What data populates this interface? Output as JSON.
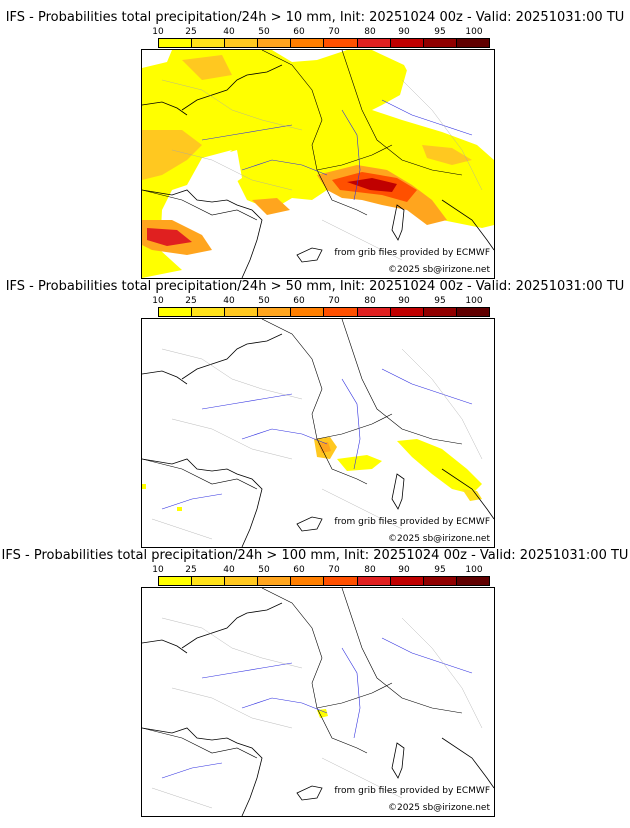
{
  "colors": {
    "scale": [
      "#ffff00",
      "#ffe21a",
      "#ffc820",
      "#ffa51e",
      "#ff7f00",
      "#ff5000",
      "#e02020",
      "#c00000",
      "#900000",
      "#600000"
    ],
    "border": "#000000",
    "river": "#3030e0",
    "admin": "#a8a8a8",
    "coast": "#000000"
  },
  "scale_ticks": [
    "10",
    "25",
    "40",
    "50",
    "60",
    "70",
    "80",
    "90",
    "95",
    "100"
  ],
  "credits": {
    "source": "from grib files provided by ECMWF",
    "copyright": "©2025 sb@irizone.net"
  },
  "panels": [
    {
      "title": "IFS - Probabilities total precipitation/24h > 10 mm, Init: 20251024 00z - Valid: 20251031:00 TU",
      "threshold": "10 mm",
      "coverage": "high"
    },
    {
      "title": "IFS - Probabilities total precipitation/24h > 50 mm, Init: 20251024 00z - Valid: 20251031:00 TU",
      "threshold": "50 mm",
      "coverage": "low"
    },
    {
      "title": "IFS - Probabilities total precipitation/24h > 100 mm, Init: 20251024 00z - Valid: 20251031:00 TU",
      "threshold": "100 mm",
      "coverage": "minimal"
    }
  ]
}
